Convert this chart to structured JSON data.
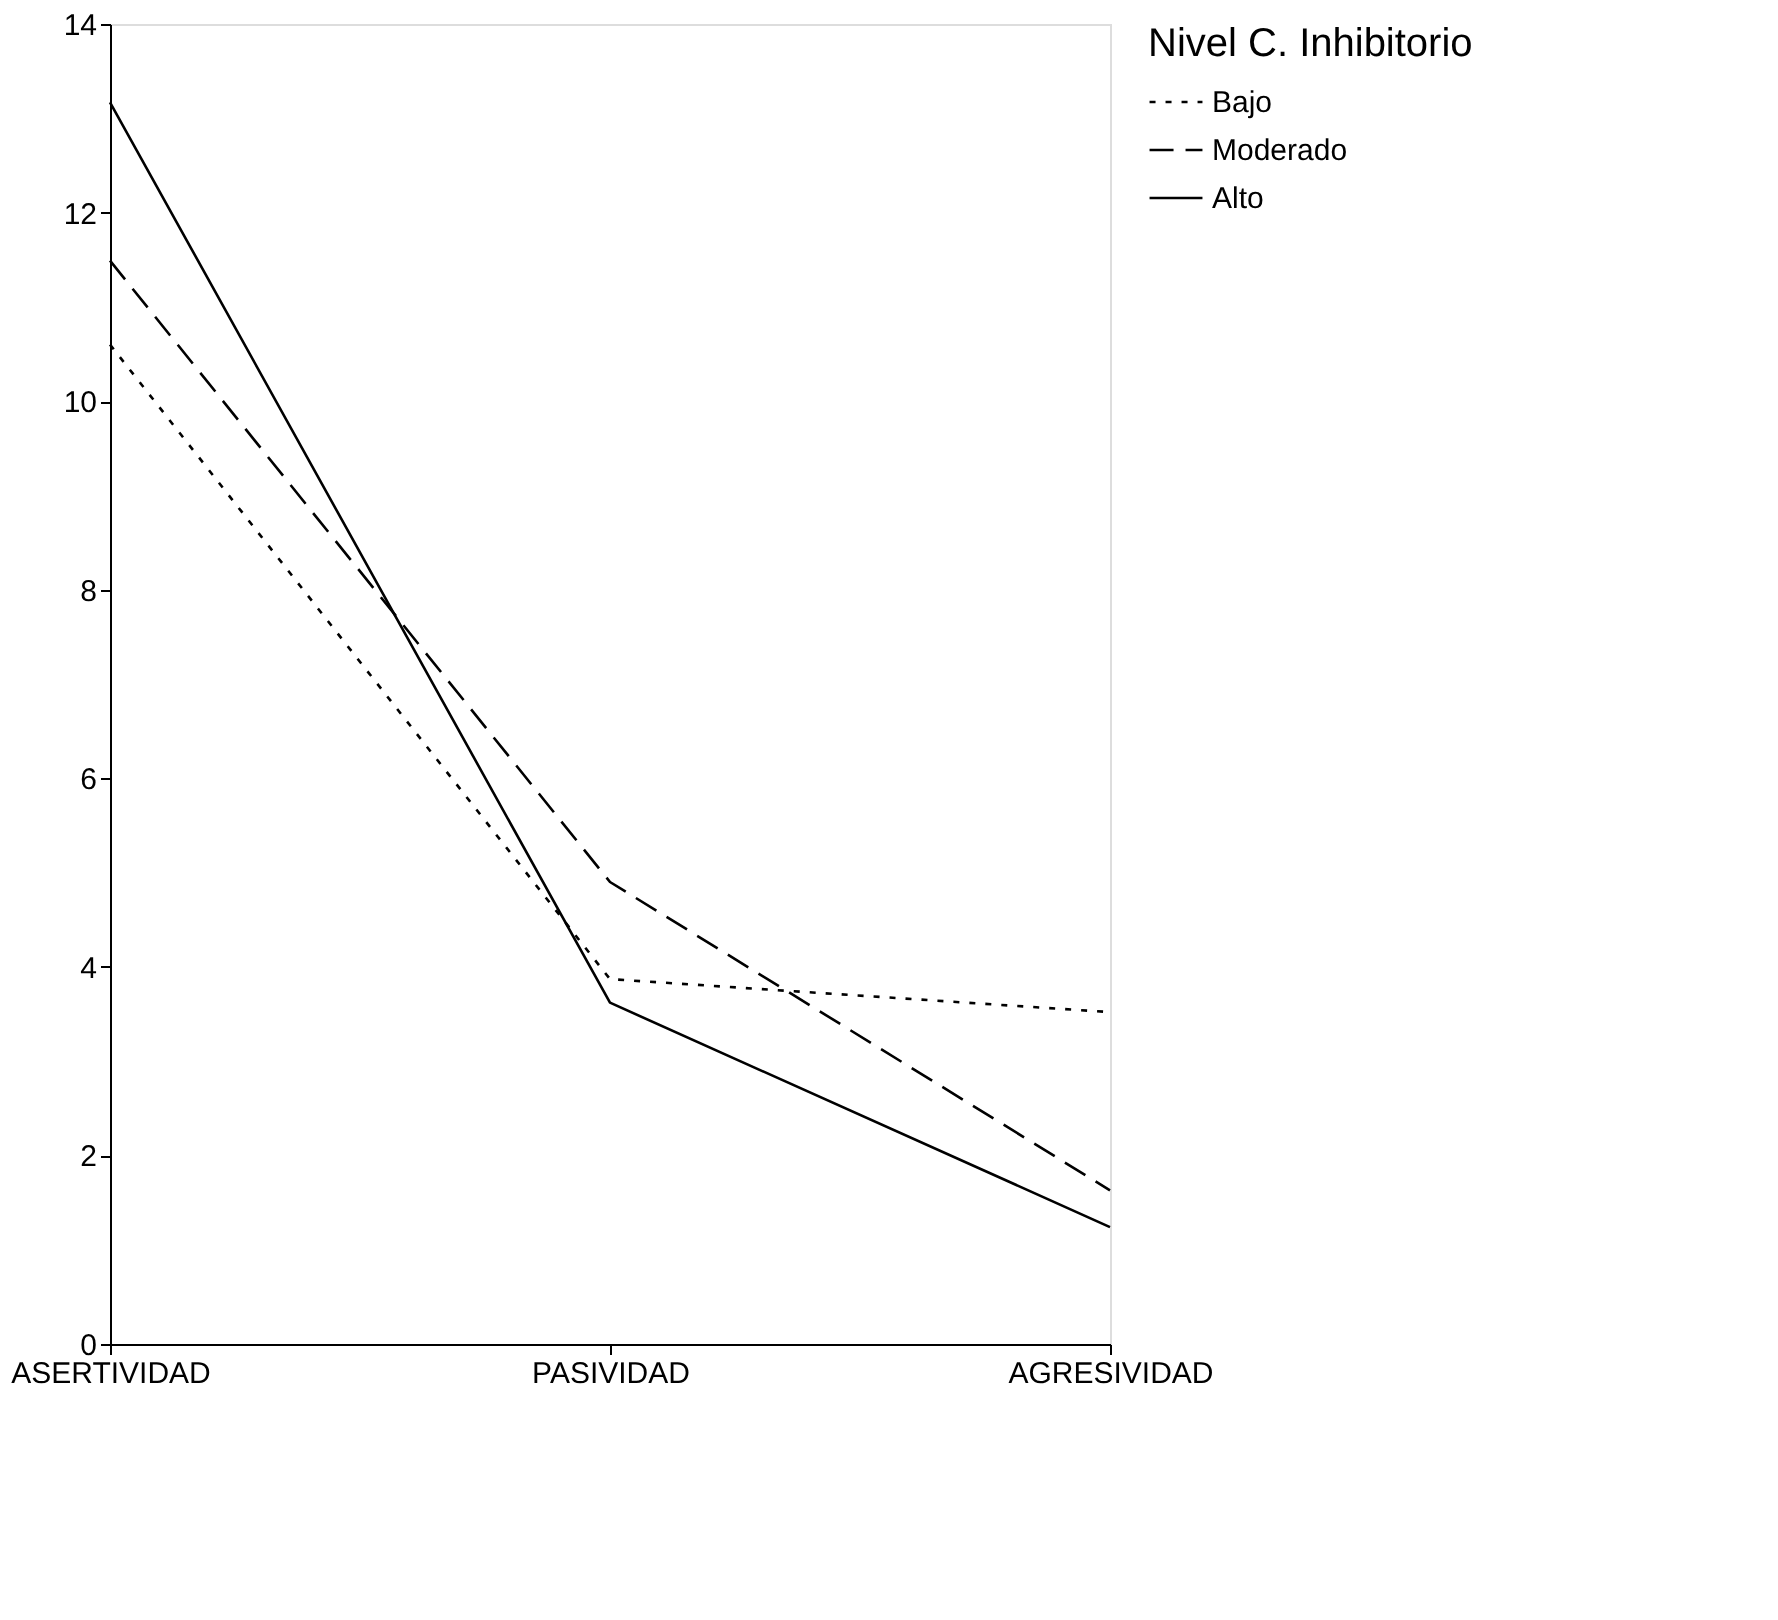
{
  "chart_data": {
    "type": "line",
    "categories": [
      "ASERTIVIDAD",
      "PASIVIDAD",
      "AGRESIVIDAD"
    ],
    "legend_title": "Nivel C. Inhibitorio",
    "legend": "right",
    "grid": false,
    "marker": "none",
    "ylim": [
      0,
      14
    ],
    "yticks": [
      0,
      2,
      4,
      6,
      8,
      10,
      12,
      14
    ],
    "series": [
      {
        "name": "Bajo",
        "color": "#000000",
        "line_style": "dotted",
        "values": [
          10.6,
          3.87,
          3.52
        ]
      },
      {
        "name": "Moderado",
        "color": "#000000",
        "line_style": "dashed",
        "values": [
          11.49,
          4.9,
          1.63
        ]
      },
      {
        "name": "Alto",
        "color": "#000000",
        "line_style": "solid",
        "values": [
          13.17,
          3.62,
          1.24
        ]
      }
    ]
  }
}
